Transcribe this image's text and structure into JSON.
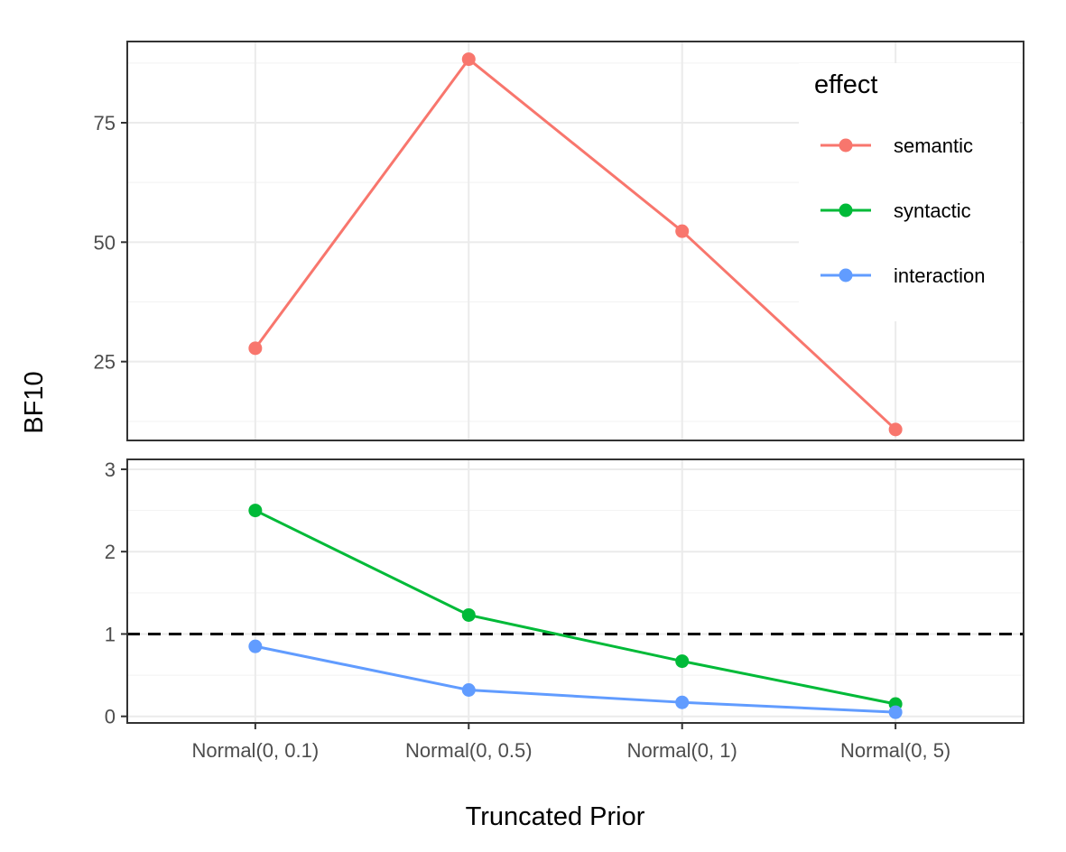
{
  "chart_data": {
    "type": "line",
    "xlabel": "Truncated Prior",
    "ylabel": "BF10",
    "categories": [
      "Normal(0, 0.1)",
      "Normal(0, 0.5)",
      "Normal(0, 1)",
      "Normal(0, 5)"
    ],
    "grid": true,
    "legend": {
      "title": "effect",
      "placement": "top-right",
      "entries": [
        "semantic",
        "syntactic",
        "interaction"
      ]
    },
    "panels": [
      {
        "name": "top",
        "ylim": [
          8.5,
          92
        ],
        "yticks": [
          25,
          50,
          75
        ],
        "series": [
          {
            "name": "semantic",
            "color": "#F8766D",
            "values": [
              27.8,
              88.3,
              52.3,
              10.8
            ]
          }
        ]
      },
      {
        "name": "bottom",
        "ylim": [
          -0.08,
          3.12
        ],
        "yticks": [
          0,
          1,
          2,
          3
        ],
        "reference_line": {
          "y": 1,
          "style": "dashed",
          "color": "#000000"
        },
        "series": [
          {
            "name": "syntactic",
            "color": "#00BA38",
            "values": [
              2.5,
              1.23,
              0.67,
              0.15
            ]
          },
          {
            "name": "interaction",
            "color": "#619CFF",
            "values": [
              0.85,
              0.32,
              0.17,
              0.05
            ]
          }
        ]
      }
    ]
  }
}
